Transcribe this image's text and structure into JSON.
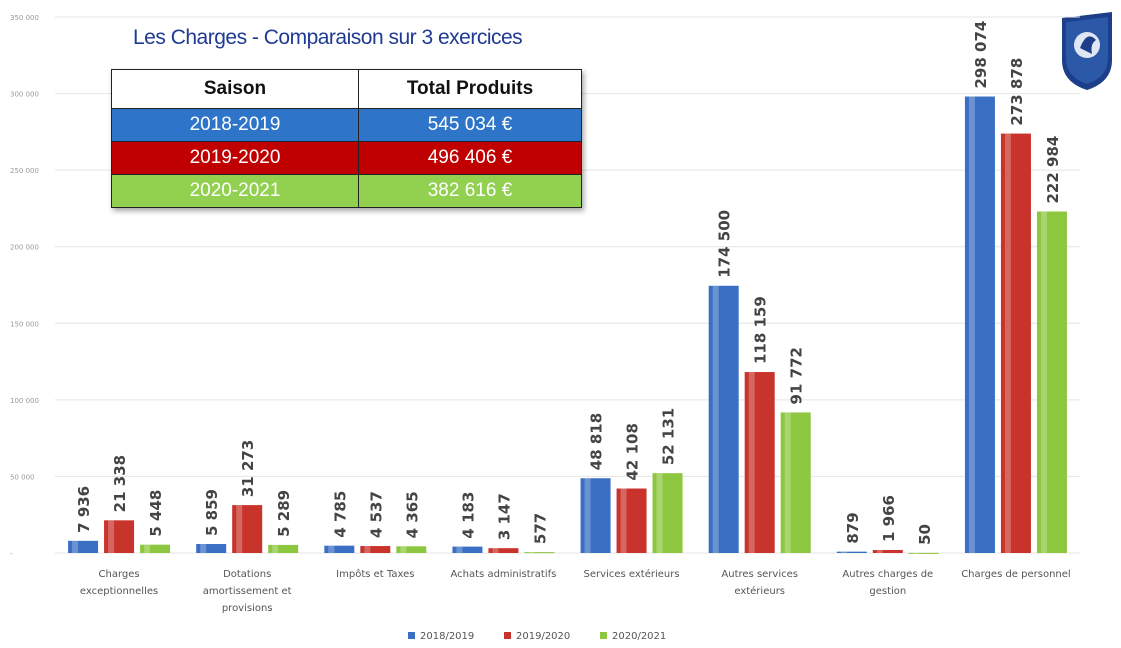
{
  "chart_data": {
    "type": "bar",
    "title": "Les Charges - Comparaison sur 3 exercices",
    "categories": [
      "Charges exceptionnelles",
      "Dotations amortissement et provisions",
      "Impôts et Taxes",
      "Achats administratifs",
      "Services extérieurs",
      "Autres services extérieurs",
      "Autres charges de gestion",
      "Charges de personnel"
    ],
    "series": [
      {
        "name": "2018/2019",
        "color": "#3a6fc4",
        "values": [
          7936,
          5859,
          4785,
          4183,
          48818,
          174500,
          879,
          298074
        ],
        "value_labels": [
          "7 936",
          "5 859",
          "4 785",
          "4 183",
          "48 818",
          "174 500",
          "879",
          "298 074"
        ]
      },
      {
        "name": "2019/2020",
        "color": "#c8332b",
        "values": [
          21338,
          31273,
          4537,
          3147,
          42108,
          118159,
          1966,
          273878
        ],
        "value_labels": [
          "21 338",
          "31 273",
          "4 537",
          "3 147",
          "42 108",
          "118 159",
          "1 966",
          "273 878"
        ]
      },
      {
        "name": "2020/2021",
        "color": "#8dc63f",
        "values": [
          5448,
          5289,
          4365,
          577,
          52131,
          91772,
          50,
          222984
        ],
        "value_labels": [
          "5 448",
          "5 289",
          "4 365",
          "577",
          "52 131",
          "91 772",
          "50",
          "222 984"
        ]
      }
    ],
    "ylim": [
      0,
      350000
    ],
    "yticks": [
      {
        "value": 0,
        "label": "-"
      },
      {
        "value": 50000,
        "label": "50 000"
      },
      {
        "value": 100000,
        "label": "100 000"
      },
      {
        "value": 150000,
        "label": "150 000"
      },
      {
        "value": 200000,
        "label": "200 000"
      },
      {
        "value": 250000,
        "label": "250 000"
      },
      {
        "value": 300000,
        "label": "300 000"
      },
      {
        "value": 350000,
        "label": "350 000"
      }
    ],
    "grid": true,
    "legend": "bottom"
  },
  "table": {
    "header": [
      "Saison",
      "Total Produits"
    ],
    "rows": [
      [
        "2018-2019",
        "545 034 €"
      ],
      [
        "2019-2020",
        "496 406 €"
      ],
      [
        "2020-2021",
        "382 616 €"
      ]
    ],
    "row_colors": [
      "#2e75c9",
      "#c00000",
      "#92d050"
    ]
  }
}
